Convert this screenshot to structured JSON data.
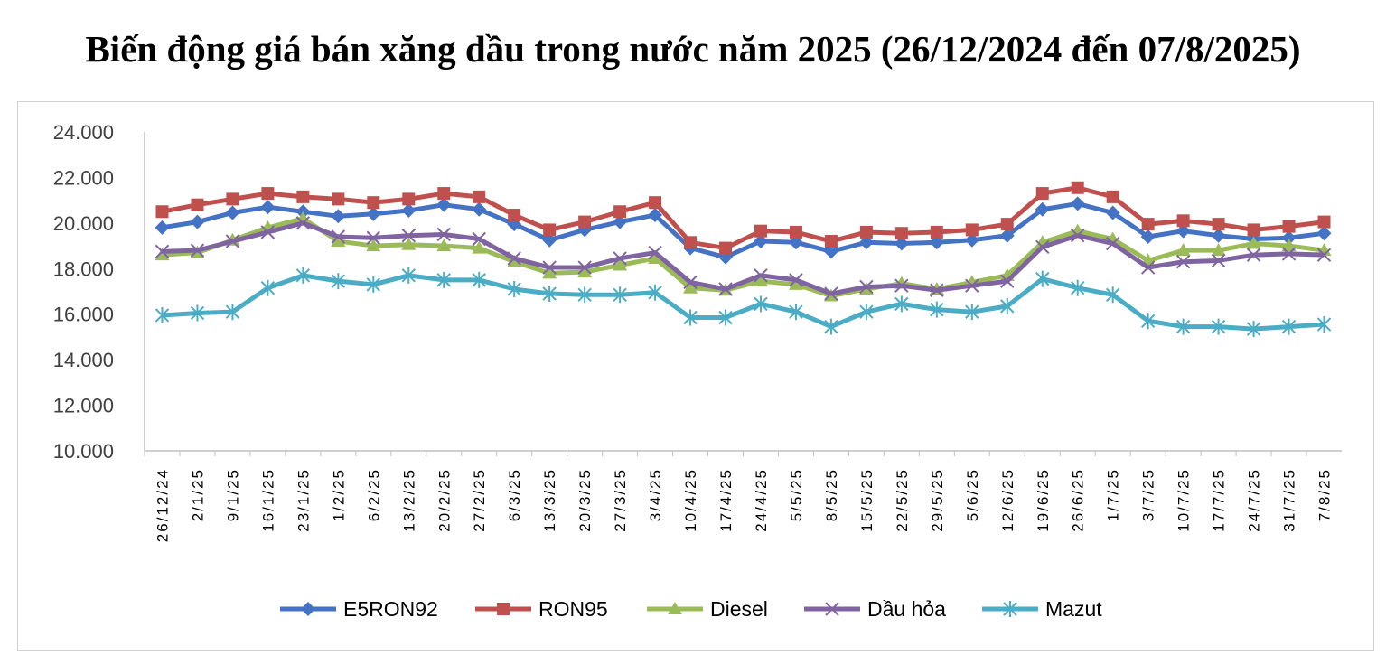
{
  "title": "Biến động giá bán xăng dầu trong nước năm 2025 (26/12/2024 đến 07/8/2025)",
  "chart_data": {
    "type": "line",
    "title": "Biến động giá bán xăng dầu trong nước năm 2025 (26/12/2024 đến 07/8/2025)",
    "xlabel": "",
    "ylabel": "",
    "ylim": [
      10000,
      24000
    ],
    "yticks": [
      "10.000",
      "12.000",
      "14.000",
      "16.000",
      "18.000",
      "20.000",
      "22.000",
      "24.000"
    ],
    "grid": false,
    "legend": "bottom",
    "categories": [
      "26/12/24",
      "2/1/25",
      "9/1/25",
      "16/1/25",
      "23/1/25",
      "1/2/25",
      "6/2/25",
      "13/2/25",
      "20/2/25",
      "27/2/25",
      "6/3/25",
      "13/3/25",
      "20/3/25",
      "27/3/25",
      "3/4/25",
      "10/4/25",
      "17/4/25",
      "24/4/25",
      "5/5/25",
      "8/5/25",
      "15/5/25",
      "22/5/25",
      "29/5/25",
      "5/6/25",
      "12/6/25",
      "19/6/25",
      "26/6/25",
      "1/7/25",
      "3/7/25",
      "10/7/25",
      "17/7/25",
      "24/7/25",
      "31/7/25",
      "7/8/25"
    ],
    "series": [
      {
        "name": "E5RON92",
        "color": "#4472c4",
        "marker": "diamond",
        "values": [
          19800,
          20050,
          20450,
          20700,
          20500,
          20300,
          20400,
          20550,
          20800,
          20600,
          19950,
          19250,
          19700,
          20050,
          20350,
          18900,
          18500,
          19200,
          19150,
          18750,
          19150,
          19100,
          19150,
          19250,
          19450,
          20600,
          20850,
          20450,
          19400,
          19650,
          19450,
          19300,
          19350,
          19550
        ]
      },
      {
        "name": "RON95",
        "color": "#c0504d",
        "marker": "square",
        "values": [
          20500,
          20800,
          21050,
          21300,
          21150,
          21050,
          20900,
          21050,
          21300,
          21150,
          20350,
          19700,
          20050,
          20500,
          20900,
          19150,
          18900,
          19650,
          19600,
          19200,
          19600,
          19550,
          19600,
          19700,
          19950,
          21300,
          21550,
          21150,
          19950,
          20100,
          19950,
          19700,
          19850,
          20050
        ]
      },
      {
        "name": "Diesel",
        "color": "#9bbb59",
        "marker": "triangle",
        "values": [
          18600,
          18700,
          19250,
          19800,
          20200,
          19200,
          19000,
          19050,
          19000,
          18900,
          18300,
          17800,
          17850,
          18150,
          18450,
          17150,
          17050,
          17450,
          17300,
          16800,
          17100,
          17350,
          17100,
          17400,
          17700,
          19150,
          19650,
          19300,
          18350,
          18800,
          18800,
          19100,
          19000,
          18800
        ]
      },
      {
        "name": "Dầu hỏa",
        "color": "#8064a2",
        "marker": "x",
        "values": [
          18750,
          18800,
          19200,
          19600,
          20000,
          19400,
          19350,
          19450,
          19500,
          19300,
          18450,
          18050,
          18050,
          18450,
          18700,
          17400,
          17100,
          17700,
          17500,
          16900,
          17200,
          17250,
          17050,
          17250,
          17450,
          18950,
          19450,
          19100,
          18050,
          18300,
          18350,
          18600,
          18650,
          18600
        ]
      },
      {
        "name": "Mazut",
        "color": "#4bacc6",
        "marker": "star",
        "values": [
          15950,
          16050,
          16100,
          17150,
          17700,
          17450,
          17300,
          17700,
          17500,
          17500,
          17100,
          16900,
          16850,
          16850,
          16950,
          15850,
          15850,
          16450,
          16100,
          15450,
          16100,
          16450,
          16200,
          16100,
          16350,
          17550,
          17150,
          16850,
          15700,
          15450,
          15450,
          15350,
          15450,
          15550
        ]
      }
    ]
  }
}
